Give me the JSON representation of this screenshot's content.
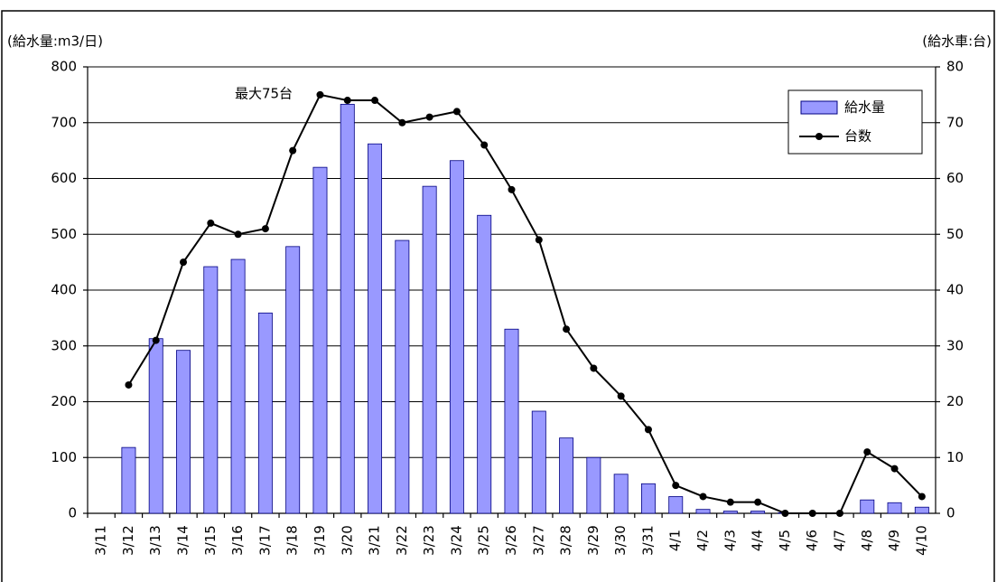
{
  "chart_data": {
    "type": "bar_line",
    "y_label": "(給水量:m3/日)",
    "y2_label": "(給水車:台)",
    "annotations": [
      {
        "text": "最大75台"
      }
    ],
    "categories": [
      "3/11",
      "3/12",
      "3/13",
      "3/14",
      "3/15",
      "3/16",
      "3/17",
      "3/18",
      "3/19",
      "3/20",
      "3/21",
      "3/22",
      "3/23",
      "3/24",
      "3/25",
      "3/26",
      "3/27",
      "3/28",
      "3/29",
      "3/30",
      "3/31",
      "4/1",
      "4/2",
      "4/3",
      "4/4",
      "4/5",
      "4/6",
      "4/7",
      "4/8",
      "4/9",
      "4/10"
    ],
    "series": [
      {
        "name": "給水量",
        "type": "bar",
        "color": "#9999ff",
        "values": [
          null,
          118,
          313,
          292,
          442,
          455,
          359,
          478,
          620,
          733,
          662,
          489,
          586,
          632,
          534,
          330,
          183,
          135,
          100,
          70,
          53,
          30,
          7,
          4,
          4,
          1,
          0,
          0,
          24,
          19,
          11
        ]
      },
      {
        "name": "台数",
        "type": "line",
        "axis": "y2",
        "color": "#000000",
        "values": [
          null,
          23,
          31,
          45,
          52,
          50,
          51,
          65,
          75,
          74,
          74,
          70,
          71,
          72,
          66,
          58,
          49,
          33,
          26,
          21,
          15,
          5,
          3,
          2,
          2,
          0,
          0,
          0,
          11,
          8,
          3
        ]
      }
    ],
    "ylim": [
      0,
      800
    ],
    "yticks": [
      0,
      100,
      200,
      300,
      400,
      500,
      600,
      700,
      800
    ],
    "y2lim": [
      0,
      80
    ],
    "y2ticks": [
      0,
      10,
      20,
      30,
      40,
      50,
      60,
      70,
      80
    ],
    "grid": true,
    "legend": "upper right"
  }
}
